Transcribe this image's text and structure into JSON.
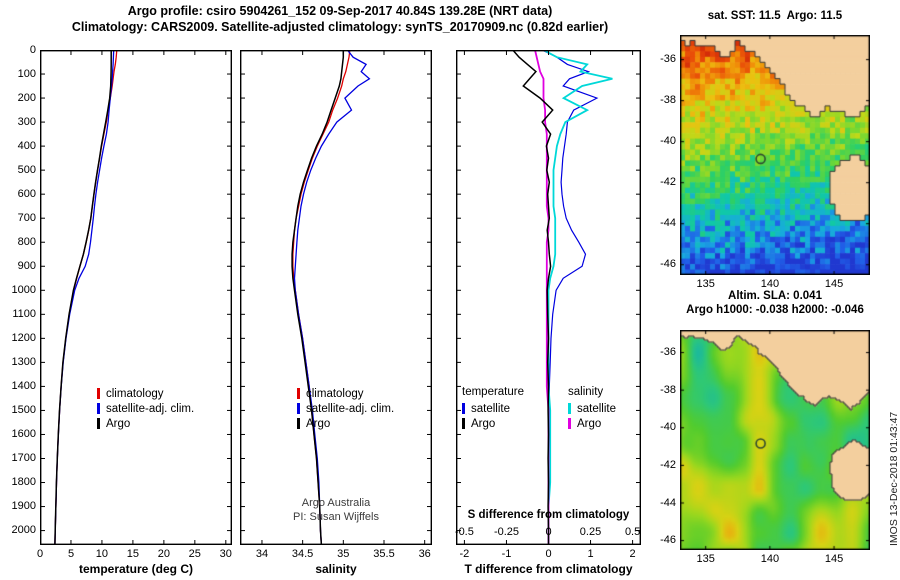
{
  "titles": {
    "line1": "Argo profile: csiro 5904261_152 09-Sep-2017 40.84S 139.28E (NRT data)",
    "line2": "Climatology: CARS2009. Satellite-adjusted climatology: synTS_20170909.nc (0.82d earlier)"
  },
  "watermark": "IMOS 13-Dec-2018 01:43:47",
  "panel2_note": {
    "line1": "Argo Australia",
    "line2": "PI: Susan Wijffels"
  },
  "chart_data": [
    {
      "type": "line",
      "title": "",
      "xlabel": "temperature (deg C)",
      "ylabel": "",
      "xlim": [
        0,
        31
      ],
      "xticks": [
        0,
        5,
        10,
        15,
        20,
        25,
        30
      ],
      "ylim": [
        0,
        2060
      ],
      "yticks": [
        0,
        100,
        200,
        300,
        400,
        500,
        600,
        700,
        800,
        900,
        1000,
        1100,
        1200,
        1300,
        1400,
        1500,
        1600,
        1700,
        1800,
        1900,
        2000
      ],
      "depths": [
        0,
        30,
        60,
        90,
        120,
        150,
        200,
        250,
        300,
        350,
        400,
        450,
        500,
        550,
        600,
        650,
        700,
        750,
        800,
        850,
        900,
        950,
        1000,
        1100,
        1200,
        1300,
        1400,
        1500,
        1600,
        1700,
        1800,
        1900,
        2000,
        2060
      ],
      "series": [
        {
          "name": "climatology",
          "color": "#e00000",
          "width": 1.3,
          "values": [
            12.4,
            12.3,
            12.15,
            11.95,
            11.8,
            11.65,
            11.35,
            11.0,
            10.7,
            10.32,
            9.95,
            9.62,
            9.3,
            9.0,
            8.72,
            8.46,
            8.2,
            7.86,
            7.46,
            7.0,
            6.45,
            5.92,
            5.42,
            4.72,
            4.17,
            3.72,
            3.41,
            3.16,
            2.96,
            2.8,
            2.66,
            2.56,
            2.46,
            2.4
          ]
        },
        {
          "name": "satellite-adj. clim.",
          "color": "#0000e0",
          "width": 1.3,
          "values": [
            11.9,
            11.85,
            11.8,
            11.72,
            11.65,
            11.55,
            11.35,
            11.15,
            11.0,
            10.72,
            10.32,
            9.95,
            9.62,
            9.3,
            9.02,
            8.8,
            8.6,
            8.38,
            8.16,
            7.86,
            7.3,
            6.3,
            5.6,
            4.8,
            4.2,
            3.75,
            3.43,
            3.17,
            2.97,
            2.8,
            2.66,
            2.56,
            2.46,
            2.4
          ]
        },
        {
          "name": "Argo",
          "color": "#000000",
          "width": 1.5,
          "values": [
            11.5,
            11.5,
            11.5,
            11.48,
            11.45,
            11.42,
            11.25,
            10.95,
            10.6,
            10.25,
            9.9,
            9.6,
            9.28,
            8.98,
            8.7,
            8.45,
            8.2,
            7.85,
            7.45,
            7.0,
            6.45,
            5.9,
            5.4,
            4.7,
            4.15,
            3.7,
            3.4,
            3.15,
            2.95,
            2.79,
            2.65,
            2.55,
            2.45,
            2.4
          ]
        }
      ],
      "legend": [
        {
          "label": "climatology",
          "color": "#e00000"
        },
        {
          "label": "satellite-adj. clim.",
          "color": "#0000e0"
        },
        {
          "label": "Argo",
          "color": "#000000"
        }
      ]
    },
    {
      "type": "line",
      "title": "",
      "xlabel": "salinity",
      "ylabel": "",
      "xlim": [
        33.73,
        36.09
      ],
      "xticks": [
        34,
        34.5,
        35,
        35.5,
        36
      ],
      "ylim": [
        0,
        2060
      ],
      "yticks": [
        0,
        100,
        200,
        300,
        400,
        500,
        600,
        700,
        800,
        900,
        1000,
        1100,
        1200,
        1300,
        1400,
        1500,
        1600,
        1700,
        1800,
        1900,
        2000
      ],
      "depths": [
        0,
        30,
        60,
        90,
        120,
        150,
        200,
        250,
        300,
        350,
        400,
        450,
        500,
        550,
        600,
        650,
        700,
        750,
        800,
        850,
        900,
        950,
        1000,
        1100,
        1200,
        1300,
        1400,
        1500,
        1600,
        1700,
        1800,
        1900,
        2000,
        2060
      ],
      "series": [
        {
          "name": "climatology",
          "color": "#e00000",
          "width": 1.3,
          "values": [
            35.08,
            35.07,
            35.05,
            35.03,
            35.0,
            34.98,
            34.93,
            34.87,
            34.82,
            34.75,
            34.68,
            34.62,
            34.57,
            34.52,
            34.48,
            34.45,
            34.42,
            34.4,
            34.39,
            34.38,
            34.38,
            34.39,
            34.41,
            34.45,
            34.5,
            34.54,
            34.58,
            34.61,
            34.64,
            34.67,
            34.69,
            34.71,
            34.72,
            34.73
          ]
        },
        {
          "name": "satellite-adj. clim.",
          "color": "#0000e0",
          "width": 1.3,
          "values": [
            35.05,
            35.12,
            35.28,
            35.22,
            35.32,
            35.18,
            35.02,
            35.1,
            34.92,
            34.82,
            34.73,
            34.66,
            34.6,
            34.55,
            34.51,
            34.48,
            34.46,
            34.44,
            34.43,
            34.42,
            34.41,
            34.4,
            34.41,
            34.45,
            34.5,
            34.54,
            34.58,
            34.62,
            34.65,
            34.68,
            34.7,
            34.71,
            34.72,
            34.73
          ]
        },
        {
          "name": "Argo",
          "color": "#000000",
          "width": 1.5,
          "values": [
            35.0,
            35.0,
            34.99,
            34.98,
            34.97,
            34.95,
            34.9,
            34.85,
            34.8,
            34.74,
            34.67,
            34.61,
            34.56,
            34.51,
            34.47,
            34.44,
            34.42,
            34.4,
            34.38,
            34.37,
            34.37,
            34.38,
            34.4,
            34.44,
            34.49,
            34.53,
            34.57,
            34.61,
            34.64,
            34.67,
            34.69,
            34.71,
            34.72,
            34.73
          ]
        }
      ],
      "legend": [
        {
          "label": "climatology",
          "color": "#e00000"
        },
        {
          "label": "satellite-adj. clim.",
          "color": "#0000e0"
        },
        {
          "label": "Argo",
          "color": "#000000"
        }
      ]
    },
    {
      "type": "line",
      "title": "",
      "xlabel": "T difference from climatology",
      "s_axis_label": "S difference from climatology",
      "ylabel": "",
      "xlim": [
        -2.2,
        2.2
      ],
      "xticks": [
        -2,
        -1,
        0,
        1,
        2
      ],
      "s_xlim": [
        -0.55,
        0.55
      ],
      "s_ticks": [
        -0.5,
        -0.25,
        0,
        0.25,
        0.5
      ],
      "ylim": [
        0,
        2060
      ],
      "yticks": [
        0,
        100,
        200,
        300,
        400,
        500,
        600,
        700,
        800,
        900,
        1000,
        1100,
        1200,
        1300,
        1400,
        1500,
        1600,
        1700,
        1800,
        1900,
        2000
      ],
      "depths": [
        0,
        30,
        60,
        90,
        120,
        150,
        200,
        250,
        300,
        350,
        400,
        450,
        500,
        550,
        600,
        650,
        700,
        750,
        800,
        850,
        900,
        950,
        1000,
        1100,
        1200,
        1300,
        1400,
        1500,
        1600,
        1700,
        1800,
        1900,
        2000,
        2060
      ],
      "series": [
        {
          "name": "T satellite",
          "group": "temperature",
          "axis": "T",
          "color": "#0000e0",
          "width": 1.2,
          "values": [
            -0.15,
            0.2,
            0.45,
            0.95,
            0.5,
            0.35,
            1.15,
            0.6,
            0.45,
            0.42,
            0.38,
            0.34,
            0.32,
            0.3,
            0.32,
            0.36,
            0.42,
            0.55,
            0.72,
            0.88,
            0.8,
            0.35,
            0.18,
            0.1,
            0.06,
            0.04,
            0.02,
            0.02,
            0.01,
            0.0,
            0.0,
            0.0,
            0.0,
            0.0
          ]
        },
        {
          "name": "S satellite",
          "group": "salinity",
          "axis": "S",
          "color": "#00d8d8",
          "width": 1.8,
          "values": [
            -0.03,
            0.05,
            0.23,
            0.19,
            0.38,
            0.2,
            0.09,
            0.23,
            0.1,
            0.07,
            0.05,
            0.04,
            0.03,
            0.03,
            0.03,
            0.03,
            0.04,
            0.04,
            0.04,
            0.04,
            0.03,
            0.01,
            0.0,
            0.0,
            0.0,
            0.0,
            0.0,
            0.01,
            0.01,
            0.01,
            0.01,
            0.0,
            0.0,
            0.0
          ]
        },
        {
          "name": "S Argo",
          "group": "salinity",
          "axis": "S",
          "color": "#e000e0",
          "width": 1.8,
          "values": [
            -0.08,
            -0.07,
            -0.06,
            -0.05,
            -0.03,
            -0.03,
            -0.03,
            -0.02,
            -0.02,
            -0.01,
            -0.01,
            -0.01,
            -0.01,
            -0.01,
            -0.01,
            -0.01,
            0.0,
            0.0,
            -0.01,
            -0.01,
            -0.01,
            -0.01,
            -0.01,
            -0.01,
            -0.01,
            -0.01,
            -0.01,
            0.0,
            0.0,
            0.0,
            0.0,
            0.0,
            0.0,
            0.0
          ]
        },
        {
          "name": "T Argo",
          "group": "temperature",
          "axis": "T",
          "color": "#000000",
          "width": 1.5,
          "values": [
            -0.85,
            -0.7,
            -0.5,
            -0.3,
            -0.45,
            -0.6,
            -0.2,
            0.1,
            -0.15,
            0.05,
            -0.05,
            0.0,
            -0.04,
            0.02,
            -0.02,
            0.0,
            0.02,
            -0.03,
            0.0,
            0.02,
            0.05,
            0.0,
            -0.03,
            -0.02,
            0.0,
            -0.02,
            0.0,
            -0.01,
            0.0,
            -0.01,
            0.0,
            -0.01,
            0.0,
            0.0
          ]
        }
      ],
      "legend": {
        "col1_header": "temperature",
        "col1": [
          {
            "label": "satellite",
            "color": "#0000e0"
          },
          {
            "label": "Argo",
            "color": "#000000"
          }
        ],
        "col2_header": "salinity",
        "col2": [
          {
            "label": "satellite",
            "color": "#00d8d8"
          },
          {
            "label": "Argo",
            "color": "#e000e0"
          }
        ]
      }
    }
  ],
  "maps": [
    {
      "title": "sat. SST: 11.5  Argo: 11.5",
      "type": "sst",
      "lon_range": [
        133,
        147.8
      ],
      "lat_range": [
        -34.8,
        -46.5
      ],
      "lon_ticks": [
        135,
        140,
        145
      ],
      "lat_ticks": [
        -36,
        -38,
        -40,
        -42,
        -44,
        -46
      ],
      "marker": {
        "lon": 139.28,
        "lat": -40.84
      },
      "marker_color": "#2f4a2f",
      "land_color": "#f3cf9e",
      "coast_color": "#383838",
      "colormap": [
        [
          7.5,
          "#2038d0"
        ],
        [
          8.5,
          "#2060e8"
        ],
        [
          9.3,
          "#18a8e0"
        ],
        [
          10.2,
          "#10c8a8"
        ],
        [
          11.2,
          "#30d060"
        ],
        [
          12.2,
          "#7ad830"
        ],
        [
          13.2,
          "#c0d818"
        ],
        [
          14.2,
          "#ecc010"
        ],
        [
          15.2,
          "#f08c08"
        ],
        [
          16.2,
          "#e84808"
        ],
        [
          17,
          "#d02808"
        ]
      ]
    },
    {
      "title1": "Altim. SLA: 0.041",
      "title2": "Argo h1000: -0.038 h2000: -0.046",
      "type": "sla",
      "lon_range": [
        133,
        147.8
      ],
      "lat_range": [
        -34.8,
        -46.5
      ],
      "lon_ticks": [
        135,
        140,
        145
      ],
      "lat_ticks": [
        -36,
        -38,
        -40,
        -42,
        -44,
        -46
      ],
      "marker": {
        "lon": 139.28,
        "lat": -40.84
      },
      "marker_color": "#2f4a2f",
      "land_color": "#f3cf9e",
      "coast_color": "#383838",
      "colormap": [
        [
          -0.15,
          "#12b2b2"
        ],
        [
          -0.08,
          "#2ec878"
        ],
        [
          -0.02,
          "#52cc2e"
        ],
        [
          0.05,
          "#9cd81e"
        ],
        [
          0.11,
          "#d8d214"
        ],
        [
          0.16,
          "#eea60e"
        ]
      ]
    }
  ]
}
